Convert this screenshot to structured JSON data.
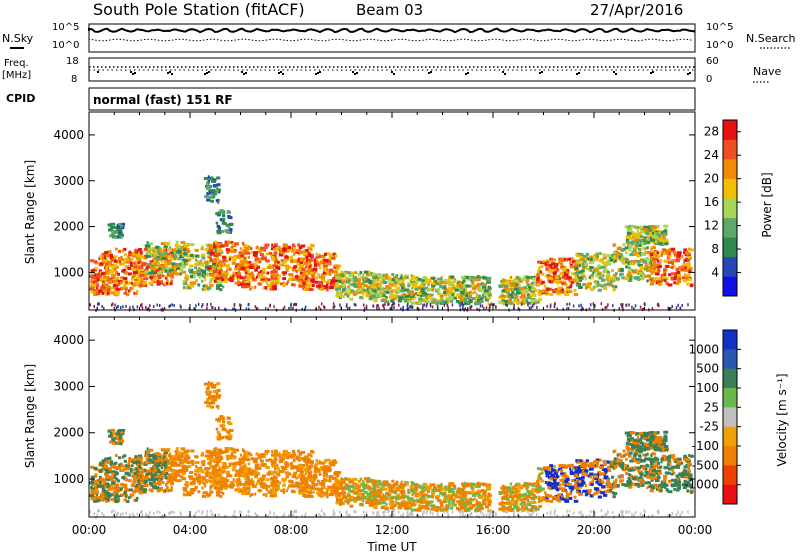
{
  "header": {
    "station": "South Pole Station (fitACF)",
    "beam": "Beam 03",
    "date": "27/Apr/2016"
  },
  "noise_panel": {
    "left_label": "N.Sky",
    "left_ticks": [
      "10^5",
      "10^0"
    ],
    "right_label": "N.Search",
    "right_ticks": [
      "10^5",
      "10^0"
    ]
  },
  "freq_panel": {
    "left_label_1": "Freq.",
    "left_label_2": "[MHz]",
    "left_ticks": [
      "18",
      "8"
    ],
    "right_label": "Nave",
    "right_ticks": [
      "60",
      "0"
    ]
  },
  "cpid_panel": {
    "label": "CPID",
    "mode": "normal (fast) 151 RF"
  },
  "colors": {
    "power": [
      "#1010e6",
      "#2a45b8",
      "#2f8a4f",
      "#5fa86a",
      "#a6d653",
      "#f0c000",
      "#f08a00",
      "#f05020",
      "#e81010"
    ],
    "velocity": [
      "#1030c8",
      "#2a58b0",
      "#3a7f55",
      "#6ab84a",
      "#c0c0c0",
      "#f0a000",
      "#f08000",
      "#f04000",
      "#e81010"
    ]
  },
  "chart_data": [
    {
      "type": "heatmap",
      "panel": "power",
      "xlabel": "",
      "ylabel": "Slant Range [km]",
      "ylim": [
        180,
        4500
      ],
      "xlim": [
        0,
        24
      ],
      "y_ticks": [
        "1000",
        "2000",
        "3000",
        "4000"
      ],
      "colorbar": {
        "label": "Power [dB]",
        "ticks": [
          "4",
          "8",
          "12",
          "16",
          "20",
          "24",
          "28"
        ],
        "range": [
          0,
          30
        ]
      }
    },
    {
      "type": "heatmap",
      "panel": "velocity",
      "xlabel": "Time UT",
      "ylabel": "Slant Range [km]",
      "ylim": [
        180,
        4500
      ],
      "xlim": [
        0,
        24
      ],
      "y_ticks": [
        "1000",
        "2000",
        "3000",
        "4000"
      ],
      "x_ticks": [
        "00:00",
        "04:00",
        "08:00",
        "12:00",
        "16:00",
        "20:00",
        "00:00"
      ],
      "colorbar": {
        "label": "Velocity [m s⁻¹]",
        "ticks": [
          "1000",
          "500",
          "100",
          "25",
          "-25",
          "-100",
          "-500",
          "-1000"
        ]
      }
    }
  ]
}
